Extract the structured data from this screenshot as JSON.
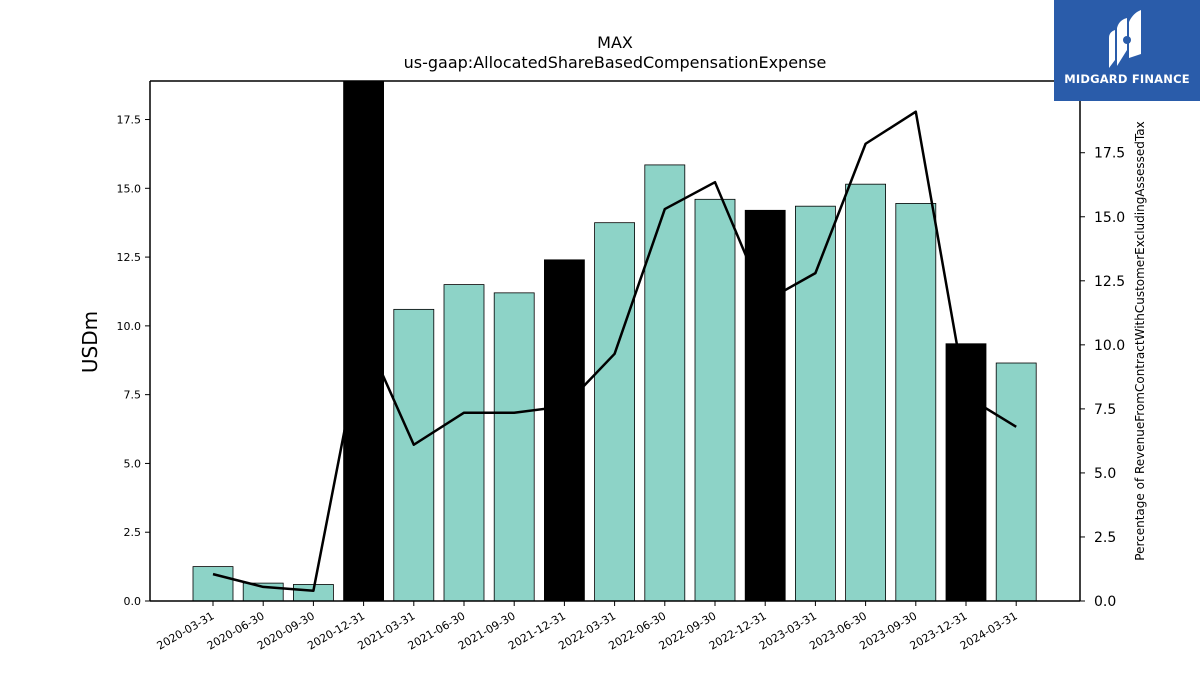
{
  "chart_data": {
    "type": "bar",
    "title": "MAX",
    "subtitle": "us-gaap:AllocatedShareBasedCompensationExpense",
    "ylabel": "USDm",
    "y2label": "Percentage of RevenueFromContractWithCustomerExcludingAssessedTax",
    "ylim": [
      0,
      18.9
    ],
    "y2lim": [
      0,
      20.3
    ],
    "yticks": [
      "0.0",
      "2.5",
      "5.0",
      "7.5",
      "10.0",
      "12.5",
      "15.0",
      "17.5"
    ],
    "y2ticks": [
      "0.0",
      "2.5",
      "5.0",
      "7.5",
      "10.0",
      "12.5",
      "15.0",
      "17.5"
    ],
    "categories": [
      "2020-03-31",
      "2020-06-30",
      "2020-09-30",
      "2020-12-31",
      "2021-03-31",
      "2021-06-30",
      "2021-09-30",
      "2021-12-31",
      "2022-03-31",
      "2022-06-30",
      "2022-09-30",
      "2022-12-31",
      "2023-03-31",
      "2023-06-30",
      "2023-09-30",
      "2023-12-31",
      "2024-03-31"
    ],
    "series": [
      {
        "type": "bar",
        "values": [
          1.25,
          0.65,
          0.6,
          18.9,
          10.6,
          11.5,
          11.2,
          12.4,
          13.75,
          15.85,
          14.6,
          14.2,
          14.35,
          15.15,
          14.45,
          9.35,
          8.65
        ],
        "colors": [
          "#8dd3c7",
          "#8dd3c7",
          "#8dd3c7",
          "#000000",
          "#8dd3c7",
          "#8dd3c7",
          "#8dd3c7",
          "#000000",
          "#8dd3c7",
          "#8dd3c7",
          "#8dd3c7",
          "#000000",
          "#8dd3c7",
          "#8dd3c7",
          "#8dd3c7",
          "#000000",
          "#8dd3c7"
        ]
      },
      {
        "type": "line",
        "axis": "right",
        "values": [
          1.05,
          0.55,
          0.4,
          10.5,
          6.1,
          7.35,
          7.35,
          7.6,
          9.65,
          15.3,
          16.35,
          11.7,
          12.8,
          17.85,
          19.1,
          8.0,
          6.8
        ],
        "color": "#000000"
      }
    ],
    "grid": false,
    "legend": "none"
  },
  "logo": {
    "text": "MIDGARD FINANCE",
    "background": "#2a5caa"
  }
}
